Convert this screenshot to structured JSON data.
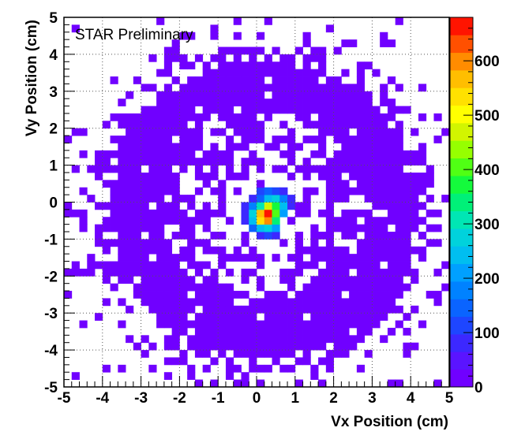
{
  "chart_data": {
    "type": "heatmap",
    "annotation": "STAR Preliminary",
    "xlabel": "Vx Position (cm)",
    "ylabel": "Vy Position (cm)",
    "xlim": [
      -5,
      5
    ],
    "ylim": [
      -5,
      5
    ],
    "x_ticks": [
      "-5",
      "-4",
      "-3",
      "-2",
      "-1",
      "0",
      "1",
      "2",
      "3",
      "4",
      "5"
    ],
    "y_ticks": [
      "5",
      "4",
      "3",
      "2",
      "1",
      "0",
      "-1",
      "-2",
      "-3",
      "-4",
      "-5"
    ],
    "grid": true,
    "colorbar": {
      "range": [
        0,
        680
      ],
      "ticks": [
        "0",
        "100",
        "200",
        "300",
        "400",
        "500",
        "600"
      ],
      "tick_values": [
        0,
        100,
        200,
        300,
        400,
        500,
        600
      ],
      "colors": [
        "#7000ff",
        "#5a14ff",
        "#3c28ff",
        "#1e46ff",
        "#0a64ff",
        "#0082ff",
        "#00a0ff",
        "#00bef0",
        "#00d2dc",
        "#00e6b4",
        "#00f078",
        "#14fa3c",
        "#50ff14",
        "#96ff00",
        "#d2f500",
        "#ffff00",
        "#ffe100",
        "#ffbe00",
        "#ff8c00",
        "#ff5000",
        "#ff1400"
      ]
    },
    "bins": 50,
    "background_level": 1,
    "hotspot": {
      "center": [
        0.3,
        -0.35
      ],
      "cells": [
        {
          "x": 0.3,
          "y": -0.3,
          "v": 660
        },
        {
          "x": 0.1,
          "y": -0.3,
          "v": 560
        },
        {
          "x": 0.3,
          "y": -0.5,
          "v": 600
        },
        {
          "x": 0.1,
          "y": -0.5,
          "v": 520
        },
        {
          "x": 0.5,
          "y": -0.3,
          "v": 420
        },
        {
          "x": 0.5,
          "y": -0.1,
          "v": 380
        },
        {
          "x": 0.3,
          "y": -0.1,
          "v": 470
        },
        {
          "x": 0.1,
          "y": -0.1,
          "v": 300
        },
        {
          "x": 0.5,
          "y": 0.1,
          "v": 260
        },
        {
          "x": 0.3,
          "y": 0.1,
          "v": 230
        },
        {
          "x": 0.7,
          "y": 0.1,
          "v": 190
        },
        {
          "x": 0.7,
          "y": -0.1,
          "v": 240
        },
        {
          "x": 0.7,
          "y": -0.3,
          "v": 200
        },
        {
          "x": 0.5,
          "y": -0.5,
          "v": 330
        },
        {
          "x": 0.3,
          "y": -0.7,
          "v": 290
        },
        {
          "x": 0.1,
          "y": -0.7,
          "v": 250
        },
        {
          "x": 0.5,
          "y": -0.7,
          "v": 210
        },
        {
          "x": -0.1,
          "y": -0.3,
          "v": 280
        },
        {
          "x": -0.1,
          "y": -0.5,
          "v": 240
        },
        {
          "x": -0.1,
          "y": -0.1,
          "v": 170
        },
        {
          "x": 0.1,
          "y": 0.1,
          "v": 160
        },
        {
          "x": -0.1,
          "y": -0.7,
          "v": 140
        },
        {
          "x": 0.1,
          "y": 0.3,
          "v": 110
        },
        {
          "x": 0.3,
          "y": 0.3,
          "v": 130
        },
        {
          "x": 0.5,
          "y": 0.3,
          "v": 120
        },
        {
          "x": 0.7,
          "y": 0.3,
          "v": 90
        },
        {
          "x": -0.3,
          "y": -0.3,
          "v": 90
        },
        {
          "x": -0.3,
          "y": -0.5,
          "v": 80
        },
        {
          "x": -0.3,
          "y": -0.1,
          "v": 70
        },
        {
          "x": 0.9,
          "y": -0.1,
          "v": 80
        },
        {
          "x": 0.9,
          "y": 0.1,
          "v": 70
        },
        {
          "x": 0.1,
          "y": -0.9,
          "v": 90
        },
        {
          "x": 0.3,
          "y": -0.9,
          "v": 100
        },
        {
          "x": 0.5,
          "y": -0.9,
          "v": 70
        },
        {
          "x": -0.1,
          "y": 0.1,
          "v": 80
        }
      ]
    }
  }
}
